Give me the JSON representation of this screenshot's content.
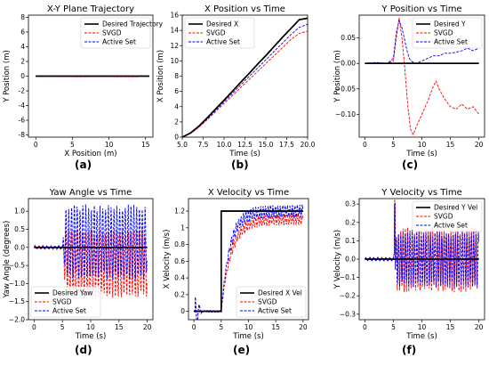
{
  "labels": [
    "(a)",
    "(b)",
    "(c)",
    "(d)",
    "(e)",
    "(f)"
  ],
  "chart_data": [
    {
      "id": "a",
      "type": "line",
      "title": "X-Y Plane Trajectory",
      "xlabel": "X Position (m)",
      "ylabel": "Y Position (m)",
      "xlim": [
        -1,
        16
      ],
      "ylim": [
        -8.3,
        8.3
      ],
      "xticks": [
        0,
        5,
        10,
        15
      ],
      "yticks": [
        -8,
        -6,
        -4,
        -2,
        0,
        2,
        4,
        6,
        8
      ],
      "legend": "top-right",
      "series": [
        {
          "name": "Desired Trajectory",
          "color": "#000000",
          "style": "solid",
          "x": [
            0,
            15.5
          ],
          "y": [
            0,
            0
          ]
        },
        {
          "name": "SVGD",
          "color": "#ff0000",
          "style": "dashed",
          "x": [
            0,
            3,
            6,
            9,
            12,
            14.2
          ],
          "y": [
            0,
            -0.05,
            -0.08,
            -0.06,
            -0.09,
            -0.08
          ]
        },
        {
          "name": "Active Set",
          "color": "#0000ff",
          "style": "dashed",
          "x": [
            0,
            4,
            8,
            12,
            15.4
          ],
          "y": [
            0,
            0.03,
            0.02,
            0.03,
            0.02
          ]
        }
      ]
    },
    {
      "id": "b",
      "type": "line",
      "title": "X Position vs Time",
      "xlabel": "Time (s)",
      "ylabel": "X Position (m)",
      "xlim": [
        5,
        20
      ],
      "ylim": [
        0,
        16
      ],
      "xticks": [
        5.0,
        7.5,
        10.0,
        12.5,
        15.0,
        17.5,
        20.0
      ],
      "xticklabels": [
        "5.0",
        "7.5",
        "10.0",
        "12.5",
        "15.0",
        "17.5",
        "20.0"
      ],
      "yticks": [
        0,
        2,
        4,
        6,
        8,
        10,
        12,
        14,
        16
      ],
      "legend": "top-left",
      "series": [
        {
          "name": "Desired X",
          "color": "#000000",
          "style": "solid",
          "x": [
            5,
            6,
            7,
            8,
            9,
            10,
            11,
            12,
            13,
            14,
            15,
            16,
            17,
            18,
            19,
            20
          ],
          "y": [
            0,
            0.55,
            1.45,
            2.55,
            3.7,
            4.85,
            6.0,
            7.2,
            8.35,
            9.55,
            10.7,
            11.9,
            13.1,
            14.25,
            15.4,
            15.6
          ]
        },
        {
          "name": "SVGD",
          "color": "#ff0000",
          "style": "dashed",
          "x": [
            5,
            6,
            7,
            8,
            9,
            10,
            11,
            12,
            13,
            14,
            15,
            16,
            17,
            18,
            19,
            20
          ],
          "y": [
            0,
            0.5,
            1.3,
            2.3,
            3.35,
            4.4,
            5.45,
            6.5,
            7.55,
            8.6,
            9.65,
            10.7,
            11.75,
            12.8,
            13.6,
            13.9
          ]
        },
        {
          "name": "Active Set",
          "color": "#0000ff",
          "style": "dashed",
          "x": [
            5,
            6,
            7,
            8,
            9,
            10,
            11,
            12,
            13,
            14,
            15,
            16,
            17,
            18,
            19,
            20
          ],
          "y": [
            0,
            0.52,
            1.38,
            2.42,
            3.52,
            4.62,
            5.72,
            6.85,
            7.95,
            9.05,
            10.15,
            11.25,
            12.35,
            13.45,
            14.4,
            14.8
          ]
        }
      ]
    },
    {
      "id": "c",
      "type": "line",
      "title": "Y Position vs Time",
      "xlabel": "Time (s)",
      "ylabel": "Y Position (m)",
      "xlim": [
        -1,
        21
      ],
      "ylim": [
        -0.145,
        0.095
      ],
      "xticks": [
        0,
        5,
        10,
        15,
        20
      ],
      "yticks": [
        -0.1,
        -0.05,
        0.0,
        0.05
      ],
      "yticklabels": [
        "−0.10",
        "−0.05",
        "0.00",
        "0.05"
      ],
      "legend": "top-right",
      "series": [
        {
          "name": "Desired Y",
          "color": "#000000",
          "style": "solid",
          "x": [
            0,
            20
          ],
          "y": [
            0,
            0
          ]
        },
        {
          "name": "SVGD",
          "color": "#ff0000",
          "style": "dashed",
          "x": [
            0,
            2,
            4,
            5,
            5.5,
            6,
            6.5,
            7,
            7.5,
            8,
            8.5,
            9,
            10,
            11,
            12,
            12.5,
            13,
            14,
            15,
            16,
            17,
            18,
            19,
            20
          ],
          "y": [
            0,
            0.001,
            0.0,
            0.005,
            0.05,
            0.09,
            0.05,
            -0.01,
            -0.08,
            -0.13,
            -0.14,
            -0.125,
            -0.1,
            -0.075,
            -0.045,
            -0.035,
            -0.05,
            -0.07,
            -0.085,
            -0.09,
            -0.08,
            -0.09,
            -0.085,
            -0.1
          ]
        },
        {
          "name": "Active Set",
          "color": "#0000ff",
          "style": "dashed",
          "x": [
            0,
            2,
            4,
            5,
            5.5,
            6,
            6.5,
            7,
            7.5,
            8,
            9,
            10,
            11,
            12,
            13,
            14,
            15,
            16,
            17,
            18,
            19,
            20
          ],
          "y": [
            0,
            0.002,
            0.0,
            0.01,
            0.06,
            0.085,
            0.07,
            0.045,
            0.02,
            0.005,
            0.0,
            0.005,
            0.01,
            0.015,
            0.015,
            0.02,
            0.02,
            0.022,
            0.025,
            0.03,
            0.025,
            0.03
          ]
        }
      ]
    },
    {
      "id": "d",
      "type": "line",
      "title": "Yaw Angle vs Time",
      "xlabel": "Time (s)",
      "ylabel": "Yaw Angle (degrees)",
      "xlim": [
        -1,
        21
      ],
      "ylim": [
        -2.0,
        1.35
      ],
      "xticks": [
        0,
        5,
        10,
        15,
        20
      ],
      "yticks": [
        -2.0,
        -1.5,
        -1.0,
        -0.5,
        0.0,
        0.5,
        1.0
      ],
      "yticklabels": [
        "−2.0",
        "−1.5",
        "−1.0",
        "−0.5",
        "0.0",
        "0.5",
        "1.0"
      ],
      "legend": "bottom-left",
      "series": [
        {
          "name": "Desired Yaw",
          "color": "#000000",
          "style": "solid",
          "x": [
            0,
            20
          ],
          "y": [
            0,
            0
          ]
        },
        {
          "name": "SVGD",
          "color": "#ff0000",
          "style": "dashed",
          "osc_start": 5,
          "osc_center": -0.45,
          "osc_amp": 1.0,
          "osc_period": 0.5,
          "pre_amp": 0.05
        },
        {
          "name": "Active Set",
          "color": "#0000ff",
          "style": "dashed",
          "osc_start": 5,
          "osc_center": 0.15,
          "osc_amp": 1.1,
          "osc_period": 0.5,
          "pre_amp": 0.06
        }
      ]
    },
    {
      "id": "e",
      "type": "line",
      "title": "X Velocity vs Time",
      "xlabel": "Time (s)",
      "ylabel": "X Velocity (m/s)",
      "xlim": [
        -1,
        21
      ],
      "ylim": [
        -0.1,
        1.35
      ],
      "xticks": [
        0,
        5,
        10,
        15,
        20
      ],
      "yticks": [
        0.0,
        0.2,
        0.4,
        0.6,
        0.8,
        1.0,
        1.2
      ],
      "legend": "bottom-right",
      "series": [
        {
          "name": "Desired X Vel",
          "color": "#000000",
          "style": "solid",
          "x": [
            0,
            5,
            5,
            20
          ],
          "y": [
            0,
            0,
            1.2,
            1.2
          ]
        },
        {
          "name": "SVGD",
          "color": "#ff0000",
          "style": "dashed",
          "rise_start": 5,
          "final": 1.1,
          "tau": 1.8,
          "noise": 0.07
        },
        {
          "name": "Active Set",
          "color": "#0000ff",
          "style": "dashed",
          "rise_start": 5,
          "final": 1.2,
          "tau": 1.6,
          "noise": 0.08
        }
      ]
    },
    {
      "id": "f",
      "type": "line",
      "title": "Y Velocity vs Time",
      "xlabel": "Time (s)",
      "ylabel": "Y Velocity (m/s)",
      "xlim": [
        -1,
        21
      ],
      "ylim": [
        -0.33,
        0.33
      ],
      "xticks": [
        0,
        5,
        10,
        15,
        20
      ],
      "yticks": [
        -0.3,
        -0.2,
        -0.1,
        0.0,
        0.1,
        0.2,
        0.3
      ],
      "yticklabels": [
        "−0.3",
        "−0.2",
        "−0.1",
        "0.0",
        "0.1",
        "0.2",
        "0.3"
      ],
      "legend": "top-right",
      "series": [
        {
          "name": "Desired Y Vel",
          "color": "#000000",
          "style": "solid",
          "x": [
            0,
            20
          ],
          "y": [
            0,
            0
          ]
        },
        {
          "name": "SVGD",
          "color": "#ff0000",
          "style": "dashed",
          "osc_start": 5,
          "osc_center": 0.0,
          "osc_amp": 0.18,
          "osc_period": 0.4,
          "spike": 0.32,
          "pre_amp": 0.01
        },
        {
          "name": "Active Set",
          "color": "#0000ff",
          "style": "dashed",
          "osc_start": 5,
          "osc_center": 0.0,
          "osc_amp": 0.16,
          "osc_period": 0.4,
          "spike": 0.3,
          "pre_amp": 0.01
        }
      ]
    }
  ]
}
